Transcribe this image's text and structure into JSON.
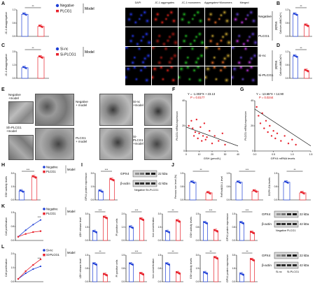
{
  "panels": {
    "A": "A",
    "B": "B",
    "C": "C",
    "D": "D",
    "E": "E",
    "F": "F",
    "G": "G",
    "H": "H",
    "I": "I",
    "J": "J",
    "K": "K",
    "L": "L"
  },
  "legend_negative_plcg1": {
    "s1": "Negative",
    "s2": "PLCG1",
    "model": "Model"
  },
  "legend_sinc_siplcg1": {
    "s1": "Si-nc",
    "s2": "Si-PLCG1",
    "model": "Model"
  },
  "colors": {
    "blue": "#1f3fd6",
    "red": "#e8232d"
  },
  "microscopy": {
    "columns": [
      "DAPI",
      "JC-1 aggregates",
      "JC-1 monomers",
      "Aggregates+Monomers",
      "Merged"
    ],
    "rows": [
      "Negative",
      "PLCG1",
      "Si-nc",
      "Si-PLCG1"
    ],
    "model": "Model"
  },
  "panel_A_ylabel": "JC-1 disaggregation",
  "panel_B_ylabel": "Calcium-AM(Ca2+)",
  "panel_C_ylabel": "JC-1 disaggregation",
  "panel_D_ylabel": "Calcium-AM(Ca2+)",
  "sig2": "**",
  "sig3": "***",
  "em": {
    "neg_label": "Negative\n+model",
    "neg_label_a": "Negative",
    "neg_label_b": "+model",
    "sh_label_a": "Sh-PLCG1",
    "sh_label_b": "+model",
    "mid_neg_a": "Negative",
    "mid_neg_b": "+ model",
    "mid_si_a": "Si-nc",
    "mid_si_b": "+model",
    "mid_plcg1_a": "PLCG1",
    "mid_plcg1_b": "+ model",
    "mid_siplcg1_a": "Si-PLCG1",
    "mid_siplcg1_b": "+model"
  },
  "panel_F": {
    "equation": "Y = -1.303*X + 23.13",
    "p": "P = 0.0177",
    "ylabel": "PLCG1 mRNA expression",
    "xlabel": "GSH (μmol/L)",
    "xticks": [
      "0",
      "10",
      "20",
      "30",
      "40"
    ]
  },
  "panel_G": {
    "equation": "Y = -13.65*X + 14.90",
    "p": "P = 0.0244",
    "ylabel": "PLCG1 mRNA expression",
    "xlabel": "GPX4 mRNA levels",
    "xticks": [
      "0.0",
      "0.5",
      "1.0",
      "1.5"
    ]
  },
  "panel_H_ylabel": "GSH activity levels",
  "panel_I_ylabel": "GPX4 protein expression",
  "western": {
    "gpx4": "GPX4",
    "actin": "β-actin",
    "kda22": "22 kDa",
    "kda42": "42 kDa",
    "neg": "Negative",
    "plcg1": "PLCG1",
    "sh": "Sh-PLCG1",
    "sinc": "Si-nc",
    "siplcg1": "Si-PLCG1"
  },
  "panel_J_ylabels": [
    "Ferrous iron level (%)",
    "FeRhoNOX-1 level",
    "DCFH-DA levels"
  ],
  "panel_K_ylabels": [
    "Cell proliferation",
    "LDH release level",
    "PI positive cells",
    "Iron concentration",
    "GSH activity levels",
    "GPX4 protein expression"
  ],
  "panel_L_ylabels": [
    "Cell proliferation",
    "LDH release level",
    "PI positive cells",
    "Iron concentration",
    "GSH activity levels",
    "GPX4 protein expression"
  ],
  "panel_K_ysubs": [
    "(fold change)",
    "(fold change)",
    "(fold change)",
    "(fold change)",
    "(fold change)",
    "(fold change)"
  ],
  "chart_data": [
    {
      "type": "bar",
      "panel": "A",
      "categories": [
        "Negative",
        "PLCG1"
      ],
      "values": [
        1.0,
        0.45
      ],
      "ylim": [
        0,
        1.2
      ]
    },
    {
      "type": "bar",
      "panel": "B",
      "categories": [
        "Negative",
        "PLCG1"
      ],
      "values": [
        1.0,
        0.5
      ],
      "ylim": [
        0,
        1.2
      ]
    },
    {
      "type": "bar",
      "panel": "C",
      "categories": [
        "Si-nc",
        "Si-PLCG1"
      ],
      "values": [
        1.0,
        2.0
      ],
      "ylim": [
        0,
        2.5
      ]
    },
    {
      "type": "bar",
      "panel": "D",
      "categories": [
        "Si-nc",
        "Si-PLCG1"
      ],
      "values": [
        1.0,
        0.35
      ],
      "ylim": [
        0,
        1.2
      ]
    },
    {
      "type": "scatter",
      "panel": "F",
      "ylim": [
        0,
        40
      ],
      "xlim": [
        0,
        40
      ],
      "x": [
        2,
        4,
        5,
        6,
        7,
        8,
        9,
        10,
        11,
        12,
        13,
        14,
        15,
        16,
        18,
        20,
        22,
        25,
        28,
        30
      ],
      "y": [
        20,
        24,
        18,
        12,
        15,
        25,
        10,
        14,
        19,
        8,
        12,
        22,
        9,
        11,
        16,
        6,
        12,
        8,
        14,
        5
      ]
    },
    {
      "type": "scatter",
      "panel": "G",
      "ylim": [
        0,
        40
      ],
      "xlim": [
        0,
        1.5
      ],
      "x": [
        0.05,
        0.1,
        0.15,
        0.2,
        0.25,
        0.3,
        0.35,
        0.4,
        0.45,
        0.5,
        0.55,
        0.6,
        0.7,
        0.8,
        0.9,
        1.0,
        1.1
      ],
      "y": [
        35,
        28,
        22,
        30,
        18,
        24,
        15,
        20,
        12,
        16,
        10,
        14,
        8,
        12,
        6,
        9,
        5
      ]
    },
    {
      "type": "bar",
      "panel": "H",
      "categories": [
        "Negative",
        "PLCG1"
      ],
      "values": [
        1.0,
        2.6
      ],
      "ylim": [
        0,
        3
      ]
    },
    {
      "type": "bar",
      "panel": "I",
      "categories": [
        "Negative",
        "PLCG1"
      ],
      "values": [
        1.0,
        2.3
      ],
      "ylim": [
        0,
        3
      ]
    },
    {
      "type": "bar",
      "panel": "J1",
      "categories": [
        "Negative",
        "PLCG1"
      ],
      "values": [
        1.0,
        0.4
      ],
      "ylim": [
        0,
        1.5
      ]
    },
    {
      "type": "bar",
      "panel": "J2",
      "categories": [
        "Negative",
        "PLCG1"
      ],
      "values": [
        1.0,
        0.5
      ],
      "ylim": [
        0,
        1.5
      ]
    },
    {
      "type": "bar",
      "panel": "J3",
      "categories": [
        "Negative",
        "PLCG1"
      ],
      "values": [
        1.0,
        0.4
      ],
      "ylim": [
        0,
        1.5
      ]
    },
    {
      "type": "line",
      "panel": "K1",
      "x": [
        0,
        1,
        2,
        3
      ],
      "series": [
        {
          "name": "Negative",
          "values": [
            0.2,
            0.55,
            0.85,
            1.1
          ]
        },
        {
          "name": "PLCG1",
          "values": [
            0.2,
            0.35,
            0.45,
            0.5
          ]
        }
      ],
      "ylim": [
        0,
        1.5
      ]
    },
    {
      "type": "bar",
      "panel": "K2",
      "categories": [
        "Negative",
        "PLCG1"
      ],
      "values": [
        1.0,
        2.6
      ],
      "ylim": [
        0,
        3
      ]
    },
    {
      "type": "bar",
      "panel": "K3",
      "categories": [
        "Negative",
        "PLCG1"
      ],
      "values": [
        1.0,
        1.6
      ],
      "ylim": [
        0,
        2
      ]
    },
    {
      "type": "bar",
      "panel": "K4",
      "categories": [
        "Negative",
        "PLCG1"
      ],
      "values": [
        1.0,
        2.2
      ],
      "ylim": [
        0,
        3
      ]
    },
    {
      "type": "bar",
      "panel": "K5",
      "categories": [
        "Negative",
        "PLCG1"
      ],
      "values": [
        1.0,
        0.55
      ],
      "ylim": [
        0,
        1.5
      ]
    },
    {
      "type": "bar",
      "panel": "K6",
      "categories": [
        "Negative",
        "PLCG1"
      ],
      "values": [
        1.0,
        0.45
      ],
      "ylim": [
        0,
        1.5
      ]
    },
    {
      "type": "line",
      "panel": "L1",
      "x": [
        0,
        1,
        2,
        3
      ],
      "series": [
        {
          "name": "Si-nc",
          "values": [
            0.2,
            0.6,
            0.9,
            1.1
          ]
        },
        {
          "name": "Si-PLCG1",
          "values": [
            0.2,
            0.75,
            1.2,
            1.6
          ]
        }
      ],
      "ylim": [
        0,
        2
      ]
    },
    {
      "type": "bar",
      "panel": "L2",
      "categories": [
        "Si-nc",
        "Si-PLCG1"
      ],
      "values": [
        1.0,
        0.4
      ],
      "ylim": [
        0,
        1.5
      ]
    },
    {
      "type": "bar",
      "panel": "L3",
      "categories": [
        "Si-nc",
        "Si-PLCG1"
      ],
      "values": [
        1.0,
        0.45
      ],
      "ylim": [
        0,
        1.5
      ]
    },
    {
      "type": "bar",
      "panel": "L4",
      "categories": [
        "Si-nc",
        "Si-PLCG1"
      ],
      "values": [
        1.0,
        0.5
      ],
      "ylim": [
        0,
        1.5
      ]
    },
    {
      "type": "bar",
      "panel": "L5",
      "categories": [
        "Si-nc",
        "Si-PLCG1"
      ],
      "values": [
        1.0,
        2.7
      ],
      "ylim": [
        0,
        3
      ]
    },
    {
      "type": "bar",
      "panel": "L6",
      "categories": [
        "Si-nc",
        "Si-PLCG1"
      ],
      "values": [
        1.0,
        2.9
      ],
      "ylim": [
        0,
        3.5
      ]
    }
  ]
}
